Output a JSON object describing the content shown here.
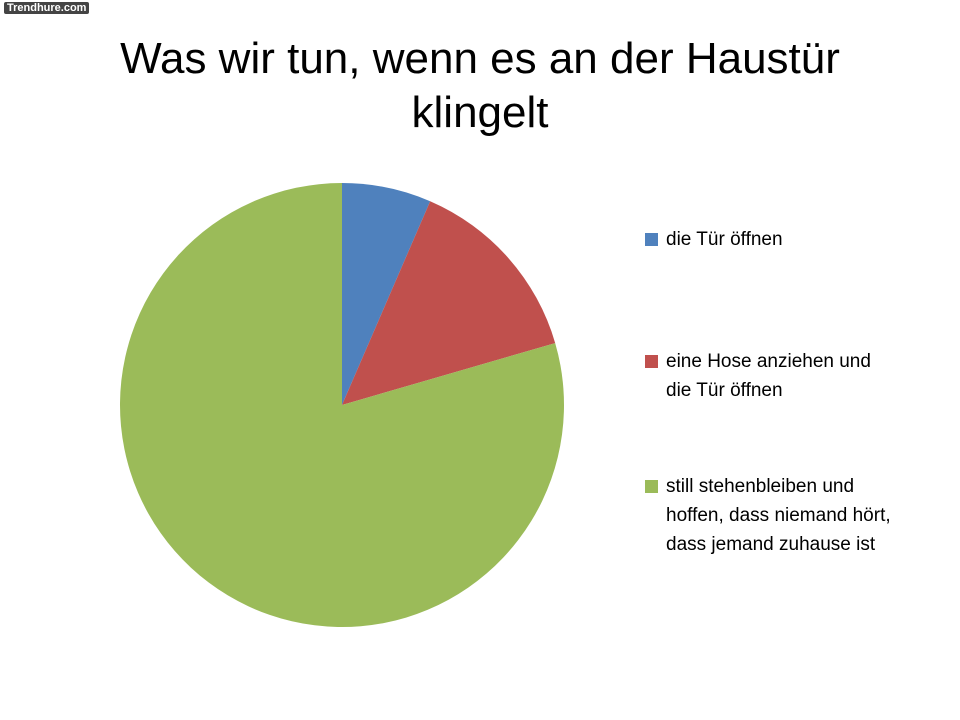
{
  "watermark": "Trendhure.com",
  "chart_data": {
    "type": "pie",
    "title": "Was wir tun, wenn es an der Haustür klingelt",
    "series": [
      {
        "name": "die Tür öffnen",
        "color": "#4f81bd",
        "values": [
          6.5
        ]
      },
      {
        "name": "eine Hose anziehen und die Tür öffnen",
        "color": "#c0504d",
        "values": [
          14
        ]
      },
      {
        "name": "still stehenbleiben und hoffen, dass niemand hört, dass jemand zuhause ist",
        "color": "#9bbb59",
        "values": [
          79.5
        ]
      }
    ],
    "legend": "right"
  }
}
